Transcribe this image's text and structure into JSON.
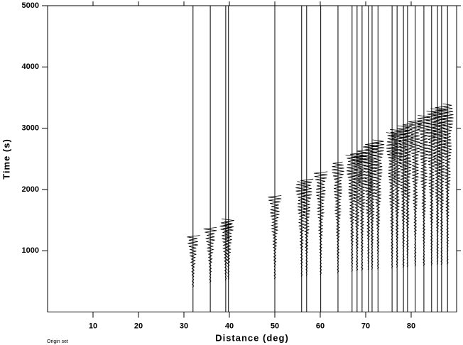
{
  "chart_data": {
    "type": "record-section",
    "xlabel": "Distance (deg)",
    "ylabel": "Time (s)",
    "footnote": "Origin set",
    "color": "#000000",
    "xlim": [
      0,
      90
    ],
    "ylim": [
      0,
      5000
    ],
    "xticks": [
      10,
      20,
      30,
      40,
      50,
      60,
      70,
      80
    ],
    "yticks": [
      1000,
      2000,
      3000,
      4000,
      5000
    ],
    "traces": [
      {
        "distance": 32.0,
        "start": 400,
        "end": 1250
      },
      {
        "distance": 35.8,
        "start": 480,
        "end": 1380
      },
      {
        "distance": 39.2,
        "start": 520,
        "end": 1480
      },
      {
        "distance": 39.8,
        "start": 530,
        "end": 1520
      },
      {
        "distance": 50.0,
        "start": 540,
        "end": 1900
      },
      {
        "distance": 55.9,
        "start": 580,
        "end": 2130
      },
      {
        "distance": 57.0,
        "start": 590,
        "end": 2170
      },
      {
        "distance": 60.1,
        "start": 610,
        "end": 2290
      },
      {
        "distance": 63.9,
        "start": 640,
        "end": 2450
      },
      {
        "distance": 67.0,
        "start": 660,
        "end": 2560
      },
      {
        "distance": 68.1,
        "start": 670,
        "end": 2600
      },
      {
        "distance": 69.2,
        "start": 680,
        "end": 2650
      },
      {
        "distance": 70.6,
        "start": 690,
        "end": 2720
      },
      {
        "distance": 71.4,
        "start": 695,
        "end": 2760
      },
      {
        "distance": 72.7,
        "start": 700,
        "end": 2810
      },
      {
        "distance": 75.8,
        "start": 720,
        "end": 2930
      },
      {
        "distance": 76.9,
        "start": 725,
        "end": 2980
      },
      {
        "distance": 78.3,
        "start": 730,
        "end": 3040
      },
      {
        "distance": 79.2,
        "start": 735,
        "end": 3080
      },
      {
        "distance": 80.9,
        "start": 745,
        "end": 3130
      },
      {
        "distance": 82.8,
        "start": 755,
        "end": 3210
      },
      {
        "distance": 84.5,
        "start": 765,
        "end": 3280
      },
      {
        "distance": 85.8,
        "start": 770,
        "end": 3320
      },
      {
        "distance": 86.7,
        "start": 775,
        "end": 3360
      },
      {
        "distance": 88.0,
        "start": 780,
        "end": 3400
      }
    ]
  }
}
